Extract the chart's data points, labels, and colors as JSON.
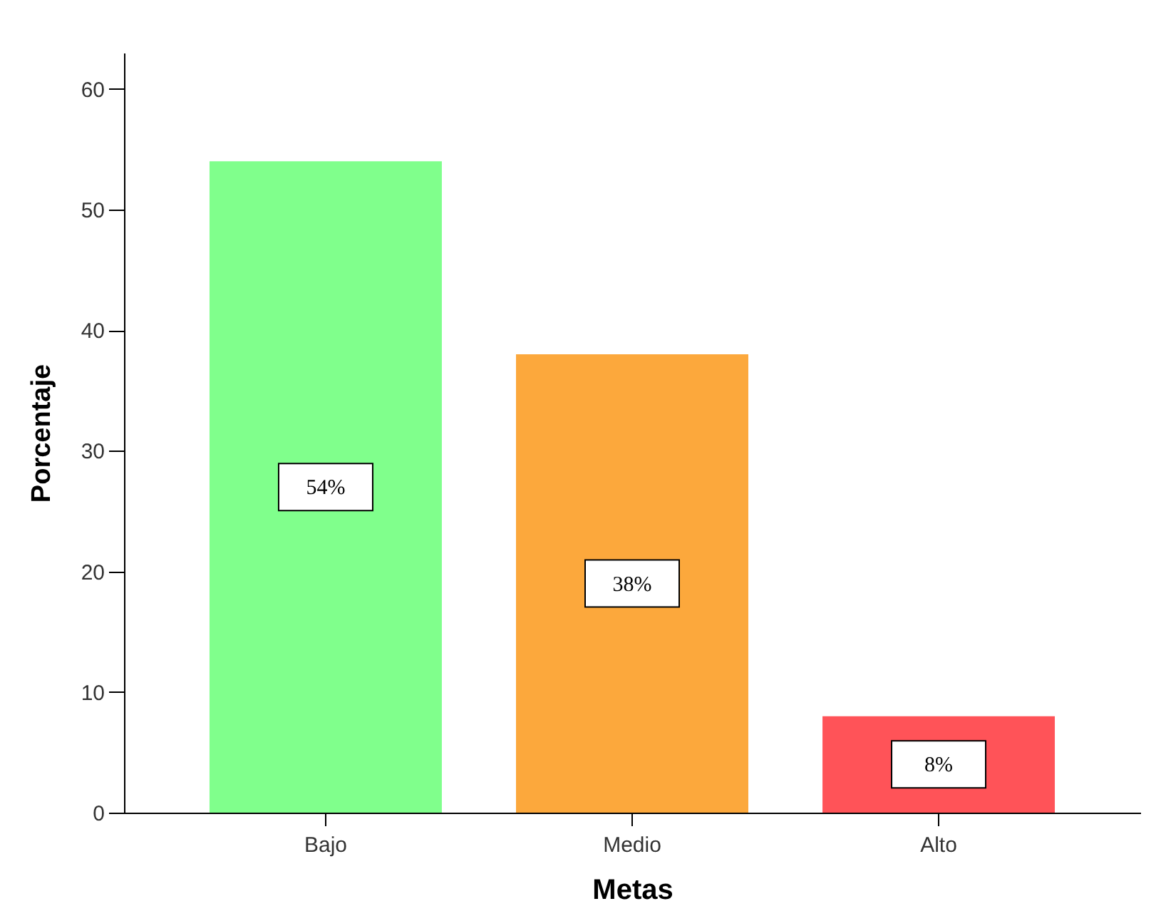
{
  "chart_data": {
    "type": "bar",
    "xlabel": "Metas",
    "ylabel": "Porcentaje",
    "categories": [
      "Bajo",
      "Medio",
      "Alto"
    ],
    "values": [
      54,
      38,
      8
    ],
    "colors": [
      "#80ff8c",
      "#fca83c",
      "#ff5358"
    ],
    "value_labels": [
      "54%",
      "38%",
      "8%"
    ],
    "ylim": [
      0,
      63
    ],
    "yticks": [
      0,
      10,
      20,
      30,
      40,
      50,
      60
    ],
    "grid": false,
    "legend": false
  }
}
